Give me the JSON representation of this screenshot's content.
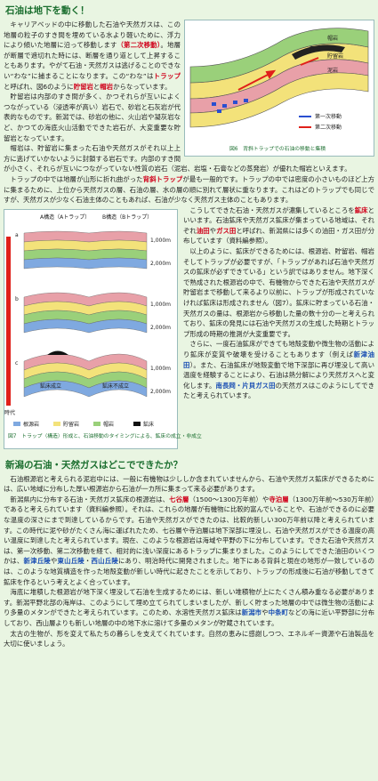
{
  "section1": {
    "title": "石油は地下を動く！",
    "paragraphs": [
      [
        "キャリアベッドの中に移動した石油や天然ガスは、この地層の粒子のすき間を埋めている水より軽いために、浮力により傾いた地層に沿って移動します",
        {
          "text": "（第二次移動）",
          "style": "red"
        },
        "。地層が断層で遮切れた時には、断層を通り道として上昇することもあります。やがて石油・天然ガスは逃げることのできない“わな”に捕まることになります。この“わな”は",
        {
          "text": "トラップ",
          "style": "red"
        },
        "と呼ばれ、図6のように",
        {
          "text": "貯留岩",
          "style": "red"
        },
        "と",
        {
          "text": "帽岩",
          "style": "red"
        },
        "からなっています。"
      ],
      [
        "貯留岩は内部のすき間が多く、かつそれらが互いによくつながっている（浸透率が高い）岩石で、砂岩と石灰岩が代表的なものです。新潟では、砂岩の他に、火山岩や凝灰岩など、かつての海底火山活動でできた岩石が、大変重要な貯留岩となっています。"
      ],
      [
        "帽岩は、貯留岩に集まった石油や天然ガスがそれ以上上方に逃げていかないように封鎖する岩石です。内部のすき間が小さく、それらが互いにつながっていない性質の岩石（泥岩、岩塩・石膏などの蒸発岩）が優れた帽岩といえます。"
      ],
      [
        "トラップの中では地層が山形に折れ曲がった",
        {
          "text": "背斜トラップ",
          "style": "red"
        },
        "が最も一般的です。トラップの中では密度の小さいものほど上方に集まるために、上位から天然ガスの層、石油の層、水の層の順に別れて層状に重なります。これはどのトラップでも同じですが、天然ガスが少なく石油主体のこともあれば、石油が少なく天然ガス主体のこともあります。"
      ],
      [
        "こうしてできた石油・天然ガスが濃集しているところを",
        {
          "text": "鉱床",
          "style": "red"
        },
        "といいます。石油鉱床や天然ガス鉱床が集まっている地域は、それぞれ",
        {
          "text": "油田",
          "style": "red"
        },
        "や",
        {
          "text": "ガス田",
          "style": "red"
        },
        "と呼ばれ、新潟県には多くの油田・ガス田が分布しています（資料編参照）。"
      ],
      [
        "以上のように、鉱床ができるためには、根源岩、貯留岩、帽岩そしてトラップが必要ですが、「トラップがあれば石油や天然ガスの鉱床が必ずできている」という訳ではありません。地下深くで熟成された根源岩の中で、有機物からできた石油や天然ガスが貯留岩まで移動して来るより以前に、トラップが形成されていなければ鉱床は形成されません（図7）。鉱床に貯まっている石油・天然ガスの量は、根源岩から移動した量の数十分の一と考えられており、鉱床の発見には石油や天然ガスの生成した時期とトラップ形成の時期の推測が大変重要です。"
      ],
      [
        "さらに、一度石油鉱床ができても地殻変動や微生物の活動により鉱床が変質や破壊を受けることもあります（例えば",
        {
          "text": "新津油田",
          "style": "blue"
        },
        "）。また、石油鉱床が地殻変動で地下深部に再び埋没して高い温度を経験することにより、石油は熱分解により天然ガスへと変化します。",
        {
          "text": "南長岡・片貝ガス田",
          "style": "blue"
        },
        "の天然ガスはこのようにしてできたと考えられています。"
      ]
    ]
  },
  "figure6": {
    "caption": "図6　背斜トラップでの石油の移動と集積",
    "labels": {
      "cap_rock": "帽岩",
      "reservoir": "貯留岩",
      "mudstone": "泥岩",
      "oil": "石油",
      "primary": "第一次移動",
      "secondary": "第二次移動"
    }
  },
  "figure7": {
    "caption": "図7　トラップ（構造）形成と、石油移動のタイミングによる、鉱床の成立・非成立",
    "structure_a": "A構造（Aトラップ）",
    "structure_b": "B構造（Bトラップ）",
    "success": "鉱床成立",
    "failure": "鉱床不成立",
    "time": "時代",
    "depths": [
      "1,000m",
      "2,000m"
    ],
    "stages": [
      "a",
      "b",
      "c"
    ],
    "legend": [
      "根源岩",
      "貯留岩",
      "帽岩",
      "鉱床"
    ]
  },
  "section2": {
    "title": "新潟の石油・天然ガスはどこでできたか？",
    "paragraphs": [
      [
        "石油根源岩と考えられる泥岩中には、一般に有機物は少ししか含まれていませんから、石油や天然ガス鉱床ができるためには、広い地域に分布した厚い根源岩から石油が一カ所に集まって来る必要があります。"
      ],
      [
        "新潟県内に分布する石油・天然ガス鉱床の根源岩は、",
        {
          "text": "七谷層",
          "style": "red"
        },
        "（1500～1300万年前）や",
        {
          "text": "寺泊層",
          "style": "red"
        },
        "（1300万年前～530万年前）であると考えられています（資料編参照）。それは、これらの地層が有機物に比較的富んでいることや、石油ができるのに必要な温度の深さにまで到達しているからです。石油や天然ガスができたのは、比較的新しい300万年前以降と考えられています。この時代に泥や砂がたくさん海に運ばれたため、七谷層や寺泊層は地下深部に埋没し、石油や天然ガスができる温度の高い温度に到達したと考えられています。現在、このような根源岩は海域や平野の下に分布しています。できた石油や天然ガスは、第一次移動、第二次移動を経て、相対的に浅い深度にあるトラップに集まりました。このようにしてできた油田のいくつかは、",
        {
          "text": "新津丘陵",
          "style": "blue"
        },
        "や",
        {
          "text": "東山丘陵",
          "style": "blue"
        },
        "・",
        {
          "text": "西山丘陵",
          "style": "blue"
        },
        "にあり、明治時代に開発されました。地下にある背斜と現在の地形が一致しているのは、このような地質構造を作った地殻変動が新しい時代に起きたことを示しており、トラップの形成後に石油が移動してきて鉱床を作るという考えとよく合っています。"
      ],
      [
        "海底に堆積した根源岩が地下深く埋没して石油を生成するためには、新しい堆積物が上にたくさん積み重なる必要があります。新潟平野北部の海岸は、このようにして埋め立てられてしまいましたが、新しく貯まった地層の中では微生物の活動により多量のメタンができたと考えられています。このため、水溶性天然ガス鉱床は",
        {
          "text": "新潟市",
          "style": "blue"
        },
        "や",
        {
          "text": "中条町",
          "style": "blue"
        },
        "などの海に近い平野部に分布しており、西山層よりも新しい地層の中の地下水に溶けて多量のメタンが貯蔵されています。"
      ],
      [
        "太古の生物が、形を変えて私たちの暮らしを支えてくれています。自然の恵みに感謝しつつ、エネルギー資源や石油製品を大切に使いましょう。"
      ]
    ]
  }
}
